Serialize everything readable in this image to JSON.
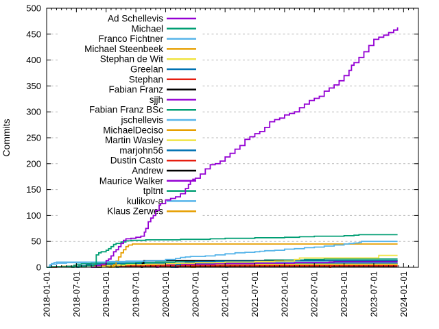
{
  "chart_data": {
    "type": "line",
    "title": "",
    "ylabel": "Commits",
    "ylim": [
      0,
      500
    ],
    "ytick_step": 50,
    "y_tick_labels": [
      "0",
      "50",
      "100",
      "150",
      "200",
      "250",
      "300",
      "350",
      "400",
      "450",
      "500"
    ],
    "x_domain_note": "months since 2018-01-01, axis spans 2018-01-01 to ~2024-04",
    "x_months_span": 75,
    "x_tick_months": [
      0,
      6,
      12,
      18,
      24,
      30,
      36,
      42,
      48,
      54,
      60,
      66,
      72
    ],
    "x_tick_labels": [
      "2018-01-01",
      "2018-07-01",
      "2019-01-01",
      "2019-07-01",
      "2020-01-01",
      "2020-07-01",
      "2021-01-01",
      "2021-07-01",
      "2022-01-01",
      "2022-07-01",
      "2023-01-01",
      "2023-07-01",
      "2024-01-01"
    ],
    "grid": "horizontal dashed gray lines at each 50-commit step",
    "legend_position": "top-left inside plot, opaque white background, right-aligned labels with line samples",
    "colors": {
      "axis": "#000000",
      "grid": "#b8b8b8",
      "background": "#ffffff"
    },
    "series": [
      {
        "name": "Ad Schellevis",
        "color": "#9400d3",
        "points": [
          [
            9,
            0
          ],
          [
            10,
            3
          ],
          [
            11,
            6
          ],
          [
            12,
            13
          ],
          [
            12.5,
            16
          ],
          [
            13,
            22
          ],
          [
            13.5,
            30
          ],
          [
            14,
            34
          ],
          [
            14.5,
            40
          ],
          [
            15,
            46
          ],
          [
            15.5,
            52
          ],
          [
            16,
            55
          ],
          [
            17,
            56
          ],
          [
            18,
            58
          ],
          [
            19,
            60
          ],
          [
            19.7,
            68
          ],
          [
            20,
            75
          ],
          [
            20.5,
            88
          ],
          [
            21,
            95
          ],
          [
            21.5,
            100
          ],
          [
            22,
            110
          ],
          [
            22.7,
            120
          ],
          [
            23,
            123
          ],
          [
            24,
            130
          ],
          [
            25,
            133
          ],
          [
            26,
            136
          ],
          [
            27,
            142
          ],
          [
            28,
            152
          ],
          [
            28.6,
            160
          ],
          [
            29,
            167
          ],
          [
            29.5,
            170
          ],
          [
            30,
            172
          ],
          [
            31,
            180
          ],
          [
            32,
            190
          ],
          [
            33,
            198
          ],
          [
            34,
            200
          ],
          [
            35,
            205
          ],
          [
            36,
            213
          ],
          [
            37,
            220
          ],
          [
            38,
            228
          ],
          [
            39,
            235
          ],
          [
            40,
            247
          ],
          [
            41,
            252
          ],
          [
            42,
            258
          ],
          [
            43,
            262
          ],
          [
            44,
            270
          ],
          [
            45,
            281
          ],
          [
            46,
            285
          ],
          [
            47,
            288
          ],
          [
            48,
            294
          ],
          [
            49,
            297
          ],
          [
            50,
            300
          ],
          [
            51,
            308
          ],
          [
            52,
            315
          ],
          [
            53,
            322
          ],
          [
            54,
            326
          ],
          [
            55,
            330
          ],
          [
            56,
            340
          ],
          [
            57,
            346
          ],
          [
            58,
            352
          ],
          [
            59,
            360
          ],
          [
            60,
            370
          ],
          [
            61,
            380
          ],
          [
            61.5,
            390
          ],
          [
            62,
            395
          ],
          [
            63,
            405
          ],
          [
            64,
            416
          ],
          [
            65,
            428
          ],
          [
            66,
            440
          ],
          [
            67,
            444
          ],
          [
            68,
            448
          ],
          [
            69,
            453
          ],
          [
            70,
            458
          ],
          [
            70.8,
            463
          ]
        ]
      },
      {
        "name": "Michael",
        "color": "#009e73",
        "points": [
          [
            0,
            0
          ],
          [
            1,
            1
          ],
          [
            4,
            2
          ],
          [
            8,
            3
          ],
          [
            9.5,
            5
          ],
          [
            10,
            24
          ],
          [
            10.5,
            28
          ],
          [
            11,
            30
          ],
          [
            12,
            33
          ],
          [
            12.5,
            36
          ],
          [
            13,
            40
          ],
          [
            13.5,
            44
          ],
          [
            14,
            46
          ],
          [
            15,
            49
          ],
          [
            16,
            51
          ],
          [
            17,
            52
          ],
          [
            20,
            53
          ],
          [
            27,
            54
          ],
          [
            33,
            55
          ],
          [
            36,
            56
          ],
          [
            42,
            57
          ],
          [
            48,
            58
          ],
          [
            51,
            59
          ],
          [
            54,
            60
          ],
          [
            60,
            61
          ],
          [
            62,
            62
          ],
          [
            63,
            63
          ],
          [
            70.8,
            63
          ]
        ]
      },
      {
        "name": "Franco Fichtner",
        "color": "#56b4e9",
        "points": [
          [
            0,
            0
          ],
          [
            0.7,
            5
          ],
          [
            1,
            7
          ],
          [
            1.5,
            9
          ],
          [
            2,
            10
          ],
          [
            12,
            11
          ],
          [
            16,
            12
          ],
          [
            20,
            13
          ],
          [
            24,
            15
          ],
          [
            26,
            17
          ],
          [
            27,
            19
          ],
          [
            28,
            20
          ],
          [
            29,
            21
          ],
          [
            32,
            22
          ],
          [
            34,
            24
          ],
          [
            36,
            26
          ],
          [
            38,
            28
          ],
          [
            40,
            29
          ],
          [
            42,
            30
          ],
          [
            43,
            31
          ],
          [
            44,
            32
          ],
          [
            46,
            33
          ],
          [
            48,
            35
          ],
          [
            50,
            36
          ],
          [
            52,
            38
          ],
          [
            54,
            39
          ],
          [
            56,
            41
          ],
          [
            58,
            43
          ],
          [
            60,
            45
          ],
          [
            61,
            46
          ],
          [
            62,
            47
          ],
          [
            63,
            48
          ],
          [
            63.5,
            50
          ],
          [
            70.8,
            50
          ]
        ]
      },
      {
        "name": "Michael Steenbeek",
        "color": "#e69f00",
        "points": [
          [
            12.5,
            0
          ],
          [
            13,
            2
          ],
          [
            13.5,
            5
          ],
          [
            14,
            12
          ],
          [
            14.5,
            20
          ],
          [
            15,
            28
          ],
          [
            15.5,
            34
          ],
          [
            16,
            40
          ],
          [
            16.5,
            43
          ],
          [
            17.3,
            45
          ],
          [
            70.8,
            45
          ]
        ]
      },
      {
        "name": "Stephan de Wit",
        "color": "#f0e442",
        "points": [
          [
            9,
            0
          ],
          [
            10,
            2
          ],
          [
            12,
            3
          ],
          [
            14,
            4
          ],
          [
            16,
            5
          ],
          [
            20,
            6
          ],
          [
            24,
            7
          ],
          [
            26,
            8
          ],
          [
            30,
            9
          ],
          [
            36,
            10
          ],
          [
            42,
            11
          ],
          [
            46,
            12
          ],
          [
            50,
            15
          ],
          [
            51,
            18
          ],
          [
            66.5,
            18
          ],
          [
            67,
            23
          ],
          [
            70.8,
            23
          ]
        ]
      },
      {
        "name": "Greelan",
        "color": "#0072b2",
        "points": [
          [
            25,
            0
          ],
          [
            26,
            5
          ],
          [
            27,
            8
          ],
          [
            28,
            10
          ],
          [
            30,
            11
          ],
          [
            34,
            12
          ],
          [
            48,
            13
          ],
          [
            70.8,
            13
          ]
        ]
      },
      {
        "name": "Stephan",
        "color": "#e51e10",
        "points": [
          [
            1,
            0
          ],
          [
            2,
            1
          ],
          [
            4,
            2
          ],
          [
            8,
            3
          ],
          [
            70.8,
            3
          ]
        ]
      },
      {
        "name": "Fabian Franz",
        "color": "#000000",
        "points": [
          [
            19,
            0
          ],
          [
            19.3,
            8
          ],
          [
            19.6,
            13
          ],
          [
            70.8,
            13
          ]
        ]
      },
      {
        "name": "sjjh",
        "color": "#9400d3",
        "points": [
          [
            22,
            0
          ],
          [
            22.5,
            4
          ],
          [
            24,
            5
          ],
          [
            28,
            6
          ],
          [
            34,
            7
          ],
          [
            42,
            8
          ],
          [
            50,
            9
          ],
          [
            57,
            10
          ],
          [
            58,
            11
          ],
          [
            70.8,
            11
          ]
        ]
      },
      {
        "name": "Fabian Franz BSc",
        "color": "#009e73",
        "points": [
          [
            14,
            0
          ],
          [
            14.5,
            4
          ],
          [
            15,
            6
          ],
          [
            16,
            8
          ],
          [
            18,
            9
          ],
          [
            22,
            10
          ],
          [
            26,
            12
          ],
          [
            34,
            13
          ],
          [
            44,
            14
          ],
          [
            52,
            15
          ],
          [
            56,
            16
          ],
          [
            70.8,
            16
          ]
        ]
      },
      {
        "name": "jschellevis",
        "color": "#56b4e9",
        "points": [
          [
            0.3,
            0
          ],
          [
            0.6,
            4
          ],
          [
            1,
            6
          ],
          [
            2,
            8
          ],
          [
            4,
            9
          ],
          [
            8,
            10
          ],
          [
            70.8,
            10
          ]
        ]
      },
      {
        "name": "MichaelDeciso",
        "color": "#e69f00",
        "points": [
          [
            1,
            1
          ],
          [
            3,
            2
          ],
          [
            8,
            3
          ],
          [
            16,
            4
          ],
          [
            70.8,
            4
          ]
        ]
      },
      {
        "name": "Martin Wasley",
        "color": "#f0e442",
        "points": [
          [
            13,
            0
          ],
          [
            13.5,
            3
          ],
          [
            14.5,
            5
          ],
          [
            26,
            6
          ],
          [
            70.8,
            6
          ]
        ]
      },
      {
        "name": "marjohn56",
        "color": "#0072b2",
        "points": [
          [
            6,
            0
          ],
          [
            6.5,
            3
          ],
          [
            8,
            5
          ],
          [
            10,
            6
          ],
          [
            14,
            7
          ],
          [
            24,
            8
          ],
          [
            70.8,
            8
          ]
        ]
      },
      {
        "name": "Dustin Casto",
        "color": "#e51e10",
        "points": [
          [
            57,
            0
          ],
          [
            57.3,
            9
          ],
          [
            58,
            11
          ],
          [
            59,
            12
          ],
          [
            70.8,
            12
          ]
        ]
      },
      {
        "name": "Andrew",
        "color": "#000000",
        "points": [
          [
            10,
            0
          ],
          [
            11,
            1
          ],
          [
            14,
            2
          ],
          [
            70.8,
            2
          ]
        ]
      },
      {
        "name": "Maurice Walker",
        "color": "#9400d3",
        "points": [
          [
            26,
            0
          ],
          [
            26.5,
            3
          ],
          [
            28,
            4
          ],
          [
            32,
            5
          ],
          [
            42,
            6
          ],
          [
            55,
            7
          ],
          [
            70.8,
            7
          ]
        ]
      },
      {
        "name": "tpltnt",
        "color": "#009e73",
        "points": [
          [
            5,
            0
          ],
          [
            5.5,
            4
          ],
          [
            6,
            6
          ],
          [
            7,
            7
          ],
          [
            9,
            8
          ],
          [
            70.8,
            8
          ]
        ]
      },
      {
        "name": "kulikov-a",
        "color": "#56b4e9",
        "points": [
          [
            36,
            0
          ],
          [
            36.5,
            3
          ],
          [
            40,
            4
          ],
          [
            46,
            5
          ],
          [
            70.8,
            5
          ]
        ]
      },
      {
        "name": "Klaus Zerwes",
        "color": "#e69f00",
        "points": [
          [
            29,
            0
          ],
          [
            30,
            2
          ],
          [
            38,
            3
          ],
          [
            52,
            4
          ],
          [
            70.8,
            4
          ]
        ]
      }
    ]
  }
}
